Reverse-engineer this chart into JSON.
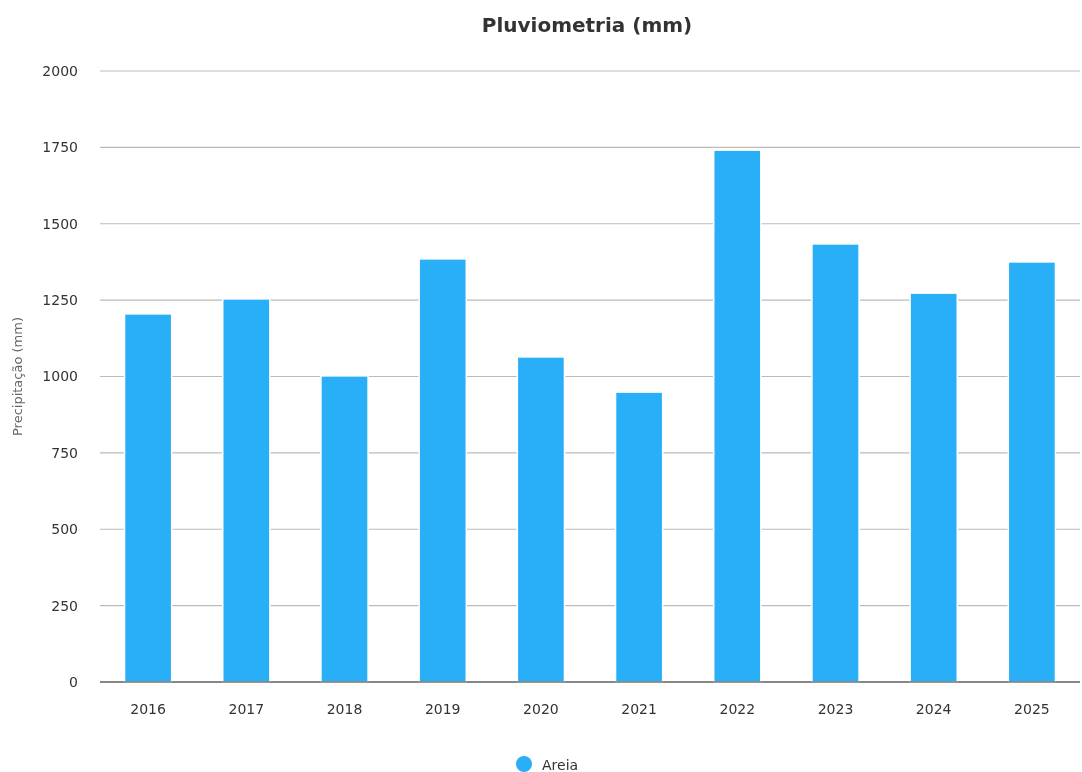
{
  "chart_data": {
    "type": "bar",
    "title": "Pluviometria (mm)",
    "ylabel": "Precipitação (mm)",
    "categories": [
      "2016",
      "2017",
      "2018",
      "2019",
      "2020",
      "2021",
      "2022",
      "2023",
      "2024",
      "2025"
    ],
    "series": [
      {
        "name": "Areia",
        "color": "#29aff8",
        "values": [
          1205,
          1254,
          1002,
          1385,
          1064,
          949,
          1741,
          1434,
          1273,
          1375
        ]
      }
    ],
    "ylim": [
      0,
      2000
    ],
    "yticks": [
      0,
      250,
      500,
      750,
      1000,
      1250,
      1500,
      1750,
      2000
    ],
    "grid": "y",
    "legend": "bottom"
  }
}
